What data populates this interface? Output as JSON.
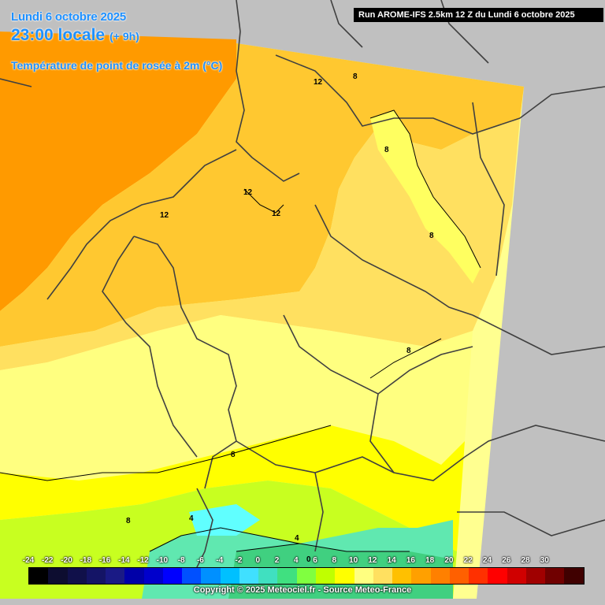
{
  "header": {
    "date": "Lundi 6 octobre 2025",
    "time": "23:00 locale",
    "offset": "(+ 9h)",
    "parameter": "Température de point de rosée à 2m (°C)"
  },
  "run_info": "Run AROME-IFS 2.5km 12 Z du Lundi 6 octobre 2025",
  "contour_labels": [
    "12",
    "8",
    "12",
    "8",
    "12",
    "12",
    "8",
    "8",
    "8",
    "4",
    "0",
    "4",
    "8"
  ],
  "legend": {
    "ticks": [
      "-24",
      "-22",
      "-20",
      "-18",
      "-16",
      "-14",
      "-12",
      "-10",
      "-8",
      "-6",
      "-4",
      "-2",
      "0",
      "2",
      "4",
      "6",
      "8",
      "10",
      "12",
      "14",
      "16",
      "18",
      "20",
      "22",
      "24",
      "26",
      "28",
      "30"
    ],
    "colors": [
      "#000000",
      "#0d0d30",
      "#10104a",
      "#141466",
      "#1a1a85",
      "#0000a8",
      "#0000cc",
      "#0000ff",
      "#0050ff",
      "#0090ff",
      "#00c0ff",
      "#40e0ff",
      "#40e0c0",
      "#40e080",
      "#80ff40",
      "#c0ff00",
      "#ffff00",
      "#ffff80",
      "#ffe060",
      "#ffc000",
      "#ffa000",
      "#ff8000",
      "#ff6000",
      "#ff3000",
      "#ff0000",
      "#d00000",
      "#a00000",
      "#700000",
      "#400000"
    ]
  },
  "copyright": "Copyright © 2025 Meteociel.fr - Source Meteo-France"
}
